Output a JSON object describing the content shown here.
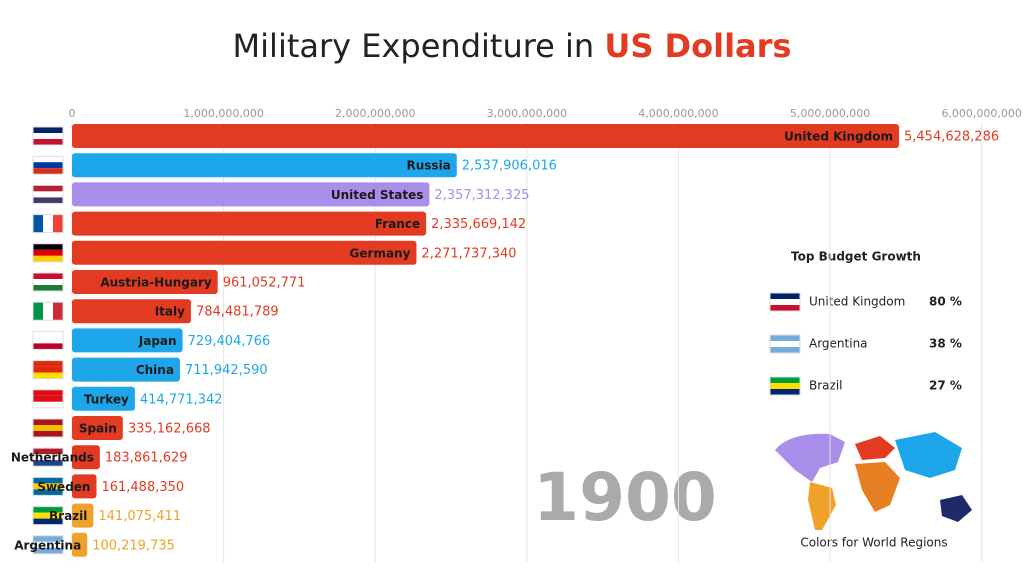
{
  "chart_data": {
    "type": "hbar",
    "title": "Military Expenditure in",
    "title_highlight": "US Dollars",
    "categories": [
      "United Kingdom",
      "Russia",
      "United States",
      "France",
      "Germany",
      "Austria-Hungary",
      "Italy",
      "Japan",
      "China",
      "Turkey",
      "Spain",
      "Netherlands",
      "Sweden",
      "Brazil",
      "Argentina"
    ],
    "values": [
      5454628286,
      2537906016,
      2357312325,
      2335669142,
      2271737340,
      961052771,
      784481789,
      729404766,
      711942590,
      414771342,
      335162668,
      183861629,
      161488350,
      141075411,
      100219735
    ],
    "value_labels": [
      "5,454,628,286",
      "2,537,906,016",
      "2,357,312,325",
      "2,335,669,142",
      "2,271,737,340",
      "961,052,771",
      "784,481,789",
      "729,404,766",
      "711,942,590",
      "414,771,342",
      "335,162,668",
      "183,861,629",
      "161,488,350",
      "141,075,411",
      "100,219,735"
    ],
    "colors": [
      "#e23b22",
      "#1ea6ea",
      "#a98ee9",
      "#e23b22",
      "#e23b22",
      "#e23b22",
      "#e23b22",
      "#1ea6ea",
      "#1ea6ea",
      "#1ea6ea",
      "#e23b22",
      "#e23b22",
      "#e23b22",
      "#f0a12a",
      "#f0a12a"
    ],
    "xlim": [
      0,
      6000000000
    ],
    "xticks": [
      0,
      {
        "value": 1000000000,
        "label": "1,000,000,000"
      },
      {
        "value": 2000000000,
        "label": "2,000,000,000"
      },
      {
        "value": 3000000000,
        "label": "3,000,000,000"
      },
      {
        "value": 4000000000,
        "label": "4,000,000,000"
      },
      {
        "value": 5000000000,
        "label": "5,000,000,000"
      },
      {
        "value": 6000000000,
        "label": "6,000,000,000"
      }
    ],
    "grid": true,
    "year": "1900",
    "growth_title": "Top Budget Growth",
    "growth": [
      {
        "country": "United Kingdom",
        "value": "80 %"
      },
      {
        "country": "Argentina",
        "value": "38 %"
      },
      {
        "country": "Brazil",
        "value": "27 %"
      }
    ],
    "map_caption": "Colors for World Regions"
  }
}
